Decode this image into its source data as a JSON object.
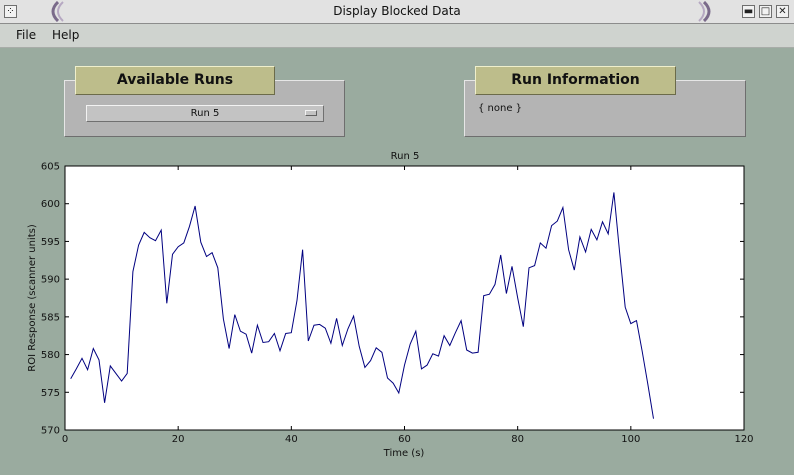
{
  "window": {
    "title": "Display Blocked Data",
    "controls": {
      "minimize": "▬",
      "maximize": "□",
      "close": "✕"
    },
    "menu_icon": "window-menu-icon"
  },
  "menu": {
    "items": [
      "File",
      "Help"
    ]
  },
  "available_runs": {
    "label": "Available Runs",
    "selected": "Run 5"
  },
  "run_information": {
    "label": "Run Information",
    "value": "{ none }"
  },
  "chart_data": {
    "type": "line",
    "title": "Run 5",
    "xlabel": "Time (s)",
    "ylabel": "ROI Response (scanner units)",
    "xlim": [
      0,
      120
    ],
    "ylim": [
      570,
      605
    ],
    "xticks": [
      0,
      20,
      40,
      60,
      80,
      100,
      120
    ],
    "yticks": [
      570,
      575,
      580,
      585,
      590,
      595,
      600,
      605
    ],
    "grid": false,
    "series": [
      {
        "color": "#000080",
        "x": [
          1,
          2,
          3,
          4,
          5,
          6,
          7,
          8,
          9,
          10,
          11,
          12,
          13,
          14,
          15,
          16,
          17,
          18,
          19,
          20,
          21,
          22,
          23,
          24,
          25,
          26,
          27,
          28,
          29,
          30,
          31,
          32,
          33,
          34,
          35,
          36,
          37,
          38,
          39,
          40,
          41,
          42,
          43,
          44,
          45,
          46,
          47,
          48,
          49,
          50,
          51,
          52,
          53,
          54,
          55,
          56,
          57,
          58,
          59,
          60,
          61,
          62,
          63,
          64,
          65,
          66,
          67,
          68,
          69,
          70,
          71,
          72,
          73,
          74,
          75,
          76,
          77,
          78,
          79,
          80,
          81,
          82,
          83,
          84,
          85,
          86,
          87,
          88,
          89,
          90,
          91,
          92,
          93,
          94,
          95,
          96,
          97,
          98,
          99,
          100,
          101,
          102,
          103,
          104
        ],
        "values": [
          576.8,
          578.1,
          579.5,
          578,
          580.8,
          579.3,
          573.6,
          578.5,
          577.5,
          576.5,
          577.5,
          591,
          594.5,
          596.2,
          595.5,
          595.1,
          596.5,
          586.8,
          593.3,
          594.3,
          594.8,
          597,
          599.7,
          594.9,
          593,
          593.5,
          591.5,
          584.7,
          580.8,
          585.3,
          583.1,
          582.7,
          580.2,
          583.9,
          581.6,
          581.7,
          582.8,
          580.5,
          582.8,
          582.9,
          587.2,
          593.9,
          581.8,
          583.9,
          584,
          583.5,
          581.5,
          584.8,
          581.2,
          583.4,
          585.1,
          581.1,
          578.3,
          579.2,
          580.9,
          580.3,
          576.9,
          576.2,
          574.9,
          578.6,
          581.4,
          583.1,
          578.1,
          578.6,
          580.1,
          579.8,
          582.5,
          581.2,
          582.9,
          584.5,
          580.6,
          580.2,
          580.3,
          587.8,
          588,
          589.3,
          593.2,
          588.1,
          591.7,
          587.5,
          583.7,
          591.5,
          591.8,
          594.8,
          594.1,
          597.1,
          597.7,
          599.5,
          593.9,
          591.2,
          595.6,
          593.6,
          596.6,
          595.2,
          597.6,
          596,
          601.5,
          593.7,
          586.3,
          584.1,
          584.5,
          580.5,
          576.1,
          571.5
        ]
      }
    ]
  }
}
